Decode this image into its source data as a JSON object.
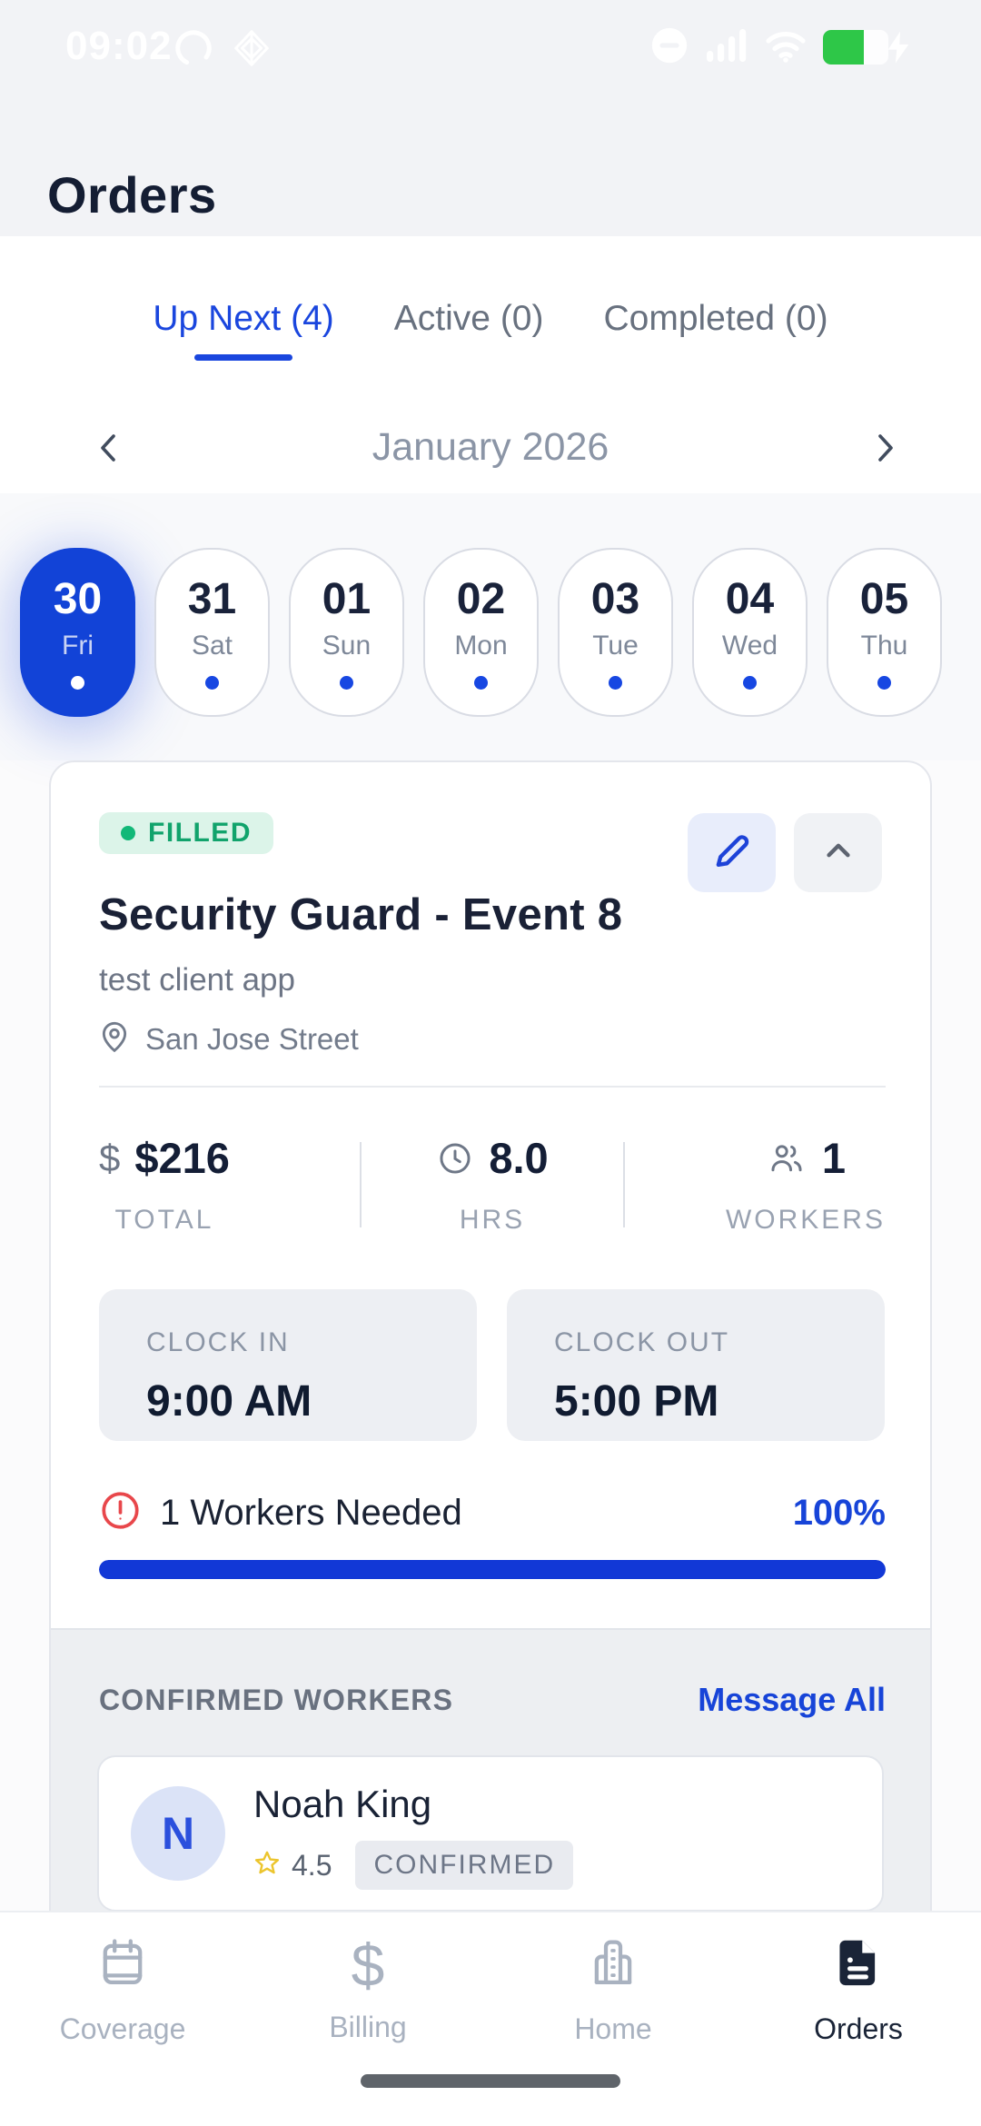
{
  "status_bar": {
    "time": "09:02",
    "battery_color": "#2ec748",
    "icons": [
      "loading-icon",
      "diamond-icon",
      "dnd-icon",
      "signal-icon",
      "wifi-icon",
      "battery-charging-icon"
    ]
  },
  "header": {
    "title": "Orders"
  },
  "tabs": [
    {
      "label": "Up Next (4)",
      "active": true
    },
    {
      "label": "Active (0)",
      "active": false
    },
    {
      "label": "Completed (0)",
      "active": false
    }
  ],
  "calendar": {
    "month": "January 2026",
    "days": [
      {
        "num": "30",
        "dow": "Fri",
        "selected": true
      },
      {
        "num": "31",
        "dow": "Sat",
        "selected": false
      },
      {
        "num": "01",
        "dow": "Sun",
        "selected": false
      },
      {
        "num": "02",
        "dow": "Mon",
        "selected": false
      },
      {
        "num": "03",
        "dow": "Tue",
        "selected": false
      },
      {
        "num": "04",
        "dow": "Wed",
        "selected": false
      },
      {
        "num": "05",
        "dow": "Thu",
        "selected": false
      }
    ]
  },
  "order_card": {
    "status_label": "FILLED",
    "title": "Security Guard - Event 8",
    "client": "test client app",
    "location": "San Jose Street",
    "stats": [
      {
        "icon": "dollar-icon",
        "value": "$216",
        "label": "TOTAL"
      },
      {
        "icon": "clock-icon",
        "value": "8.0",
        "label": "HRS"
      },
      {
        "icon": "people-icon",
        "value": "1",
        "label": "WORKERS"
      }
    ],
    "clock_in": {
      "label": "CLOCK IN",
      "value": "9:00 AM"
    },
    "clock_out": {
      "label": "CLOCK OUT",
      "value": "5:00 PM"
    },
    "workers_needed": "1 Workers Needed",
    "fill_percent": "100%",
    "progress_percent": 100,
    "accent_color": "#1238d6",
    "status_color": "#11a36c"
  },
  "confirmed_workers": {
    "heading": "CONFIRMED WORKERS",
    "action": "Message All",
    "workers": [
      {
        "initial": "N",
        "name": "Noah King",
        "rating": "4.5",
        "status": "CONFIRMED"
      }
    ]
  },
  "bottom_nav": {
    "items": [
      {
        "label": "Coverage",
        "icon": "calendar-icon",
        "active": false
      },
      {
        "label": "Billing",
        "icon": "dollar-icon",
        "active": false
      },
      {
        "label": "Home",
        "icon": "building-icon",
        "active": false
      },
      {
        "label": "Orders",
        "icon": "document-icon",
        "active": true
      }
    ]
  }
}
